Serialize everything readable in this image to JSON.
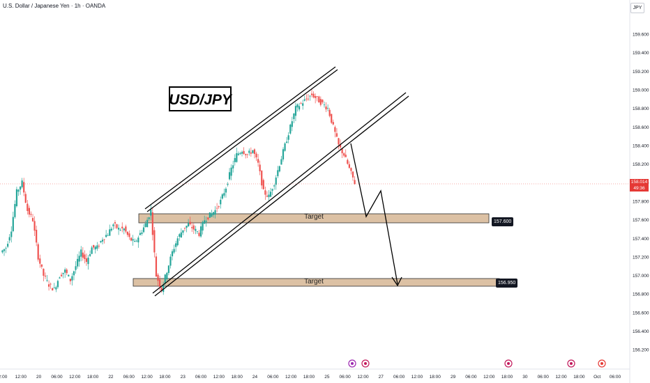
{
  "header": {
    "title": "U.S. Dollar / Japanese Yen · 1h · OANDA"
  },
  "currency": "JPY",
  "last_price": {
    "value": "158.014",
    "countdown": "49:36"
  },
  "chart_title": "USD/JPY",
  "targets": [
    {
      "label": "Target",
      "price": "157.600"
    },
    {
      "label": "Target",
      "price": "156.950"
    }
  ],
  "colors": {
    "up": "#26a69a",
    "down": "#ef5350",
    "zone": "#dcc1a4",
    "zone_border": "#2f2f2f",
    "price_line": "#ef5350"
  },
  "chart_data": {
    "type": "candlestick",
    "title": "USD/JPY",
    "ylim": [
      156.0,
      159.85
    ],
    "y_ticks": [
      "159.600",
      "159.400",
      "159.200",
      "159.000",
      "158.800",
      "158.600",
      "158.400",
      "158.200",
      "158.000",
      "157.800",
      "157.600",
      "157.400",
      "157.200",
      "157.000",
      "156.800",
      "156.600",
      "156.400",
      "156.200"
    ],
    "x_ticks": [
      "2:00",
      "12:00",
      "20",
      "06:00",
      "12:00",
      "18:00",
      "22",
      "06:00",
      "12:00",
      "18:00",
      "23",
      "06:00",
      "12:00",
      "18:00",
      "24",
      "06:00",
      "12:00",
      "18:00",
      "25",
      "06:00",
      "12:00",
      "27",
      "06:00",
      "12:00",
      "18:00",
      "29",
      "06:00",
      "12:00",
      "18:00",
      "30",
      "06:00",
      "12:00",
      "18:00",
      "Oct",
      "06:00"
    ],
    "close_path": [
      157.3,
      157.5,
      157.9,
      158.0,
      157.7,
      157.6,
      157.2,
      157.0,
      156.9,
      156.85,
      157.0,
      157.05,
      156.95,
      157.1,
      157.25,
      157.15,
      157.3,
      157.3,
      157.4,
      157.45,
      157.55,
      157.5,
      157.5,
      157.4,
      157.35,
      157.45,
      157.55,
      157.7,
      157.0,
      156.85,
      157.05,
      157.25,
      157.4,
      157.5,
      157.55,
      157.5,
      157.45,
      157.6,
      157.65,
      157.7,
      157.8,
      157.95,
      158.15,
      158.3,
      158.35,
      158.3,
      158.35,
      158.2,
      157.9,
      157.85,
      158.0,
      158.2,
      158.4,
      158.6,
      158.8,
      158.85,
      158.9,
      158.95,
      158.9,
      158.85,
      158.8,
      158.6,
      158.4,
      158.3,
      158.15,
      158.0
    ],
    "channel_upper": [
      [
        157.75,
        22.2
      ],
      [
        159.25,
        25.4
      ]
    ],
    "channel_lower": [
      [
        156.82,
        22.3
      ],
      [
        158.35,
        25.2
      ]
    ],
    "projection": [
      158.4,
      157.65,
      157.88,
      156.95
    ]
  }
}
